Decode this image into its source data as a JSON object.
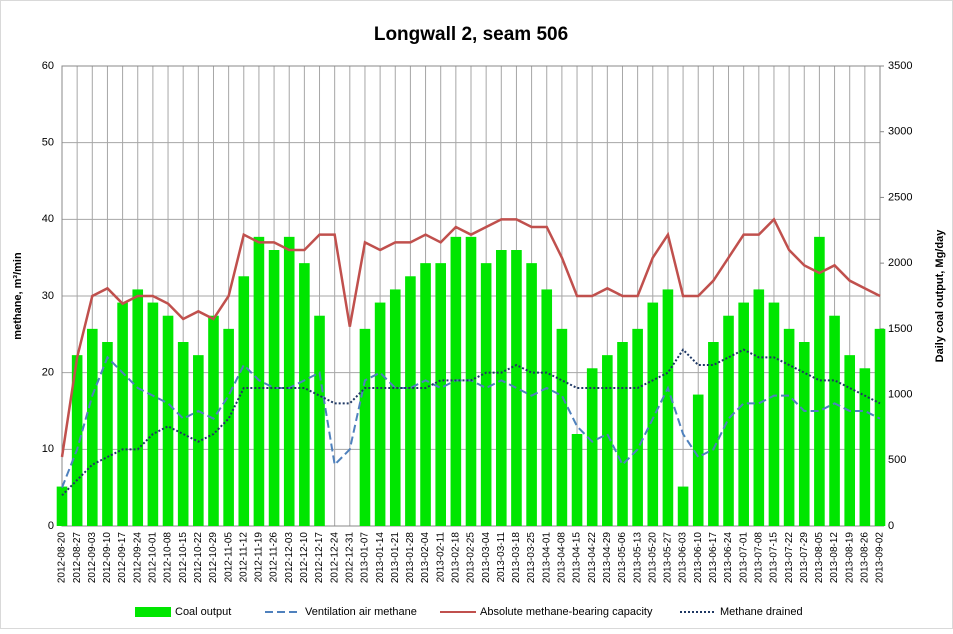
{
  "chart_data": {
    "type": "combo",
    "title": "Longwall 2, seam 506",
    "ylabel": "methane, m³/min",
    "y2label": "Daily coal output, Mg/day",
    "categories": [
      "2012-08-20",
      "2012-08-27",
      "2012-09-03",
      "2012-09-10",
      "2012-09-17",
      "2012-09-24",
      "2012-10-01",
      "2012-10-08",
      "2012-10-15",
      "2012-10-22",
      "2012-10-29",
      "2012-11-05",
      "2012-11-12",
      "2012-11-19",
      "2012-11-26",
      "2012-12-03",
      "2012-12-10",
      "2012-12-17",
      "2012-12-24",
      "2012-12-31",
      "2013-01-07",
      "2013-01-14",
      "2013-01-21",
      "2013-01-28",
      "2013-02-04",
      "2013-02-11",
      "2013-02-18",
      "2013-02-25",
      "2013-03-04",
      "2013-03-11",
      "2013-03-18",
      "2013-03-25",
      "2013-04-01",
      "2013-04-08",
      "2013-04-15",
      "2013-04-22",
      "2013-04-29",
      "2013-05-06",
      "2013-05-13",
      "2013-05-20",
      "2013-05-27",
      "2013-06-03",
      "2013-06-10",
      "2013-06-17",
      "2013-06-24",
      "2013-07-01",
      "2013-07-08",
      "2013-07-15",
      "2013-07-22",
      "2013-07-29",
      "2013-08-05",
      "2013-08-12",
      "2013-08-19",
      "2013-08-26",
      "2013-09-02"
    ],
    "series": [
      {
        "name": "Coal output",
        "kind": "bar",
        "axis": "y2",
        "color": "#00e600",
        "values": [
          300,
          1300,
          1500,
          1400,
          1700,
          1800,
          1700,
          1600,
          1400,
          1300,
          1600,
          1500,
          1900,
          2200,
          2100,
          2200,
          2000,
          1600,
          0,
          0,
          1500,
          1700,
          1800,
          1900,
          2000,
          2000,
          2200,
          2200,
          2000,
          2100,
          2100,
          2000,
          1800,
          1500,
          700,
          1200,
          1300,
          1400,
          1500,
          1700,
          1800,
          300,
          1000,
          1400,
          1600,
          1700,
          1800,
          1700,
          1500,
          1400,
          2200,
          1600,
          1300,
          1200,
          1500
        ]
      },
      {
        "name": "Ventilation air methane",
        "kind": "line",
        "dash": "dashed",
        "color": "#4f81bd",
        "values": [
          5,
          10,
          17,
          22,
          20,
          18,
          17,
          16,
          14,
          15,
          14,
          17,
          21,
          19,
          18,
          18,
          19,
          20,
          8,
          10,
          19,
          20,
          18,
          18,
          19,
          18,
          19,
          19,
          18,
          19,
          18,
          17,
          18,
          17,
          13,
          11,
          12,
          8,
          10,
          14,
          18,
          12,
          9,
          10,
          14,
          16,
          16,
          17,
          17,
          15,
          15,
          16,
          15,
          15,
          14
        ]
      },
      {
        "name": "Absolute methane-bearing capacity",
        "kind": "line",
        "dash": "solid",
        "color": "#c0504d",
        "values": [
          9,
          22,
          30,
          31,
          29,
          30,
          30,
          29,
          27,
          28,
          27,
          30,
          38,
          37,
          37,
          36,
          36,
          38,
          38,
          26,
          37,
          36,
          37,
          37,
          38,
          37,
          39,
          38,
          39,
          40,
          40,
          39,
          39,
          35,
          30,
          30,
          31,
          30,
          30,
          35,
          38,
          30,
          30,
          32,
          35,
          38,
          38,
          40,
          36,
          34,
          33,
          34,
          32,
          31,
          30
        ]
      },
      {
        "name": "Methane drained",
        "kind": "line",
        "dash": "dotted",
        "color": "#1f3864",
        "values": [
          4,
          6,
          8,
          9,
          10,
          10,
          12,
          13,
          12,
          11,
          12,
          14,
          18,
          18,
          18,
          18,
          18,
          17,
          16,
          16,
          18,
          18,
          18,
          18,
          18,
          19,
          19,
          19,
          20,
          20,
          21,
          20,
          20,
          19,
          18,
          18,
          18,
          18,
          18,
          19,
          20,
          23,
          21,
          21,
          22,
          23,
          22,
          22,
          21,
          20,
          19,
          19,
          18,
          17,
          16
        ]
      }
    ],
    "ylim": [
      0,
      60
    ],
    "yticks": [
      0,
      10,
      20,
      30,
      40,
      50,
      60
    ],
    "y2lim": [
      0,
      3500
    ],
    "y2ticks": [
      0,
      500,
      1000,
      1500,
      2000,
      2500,
      3000,
      3500
    ],
    "grid": true
  }
}
